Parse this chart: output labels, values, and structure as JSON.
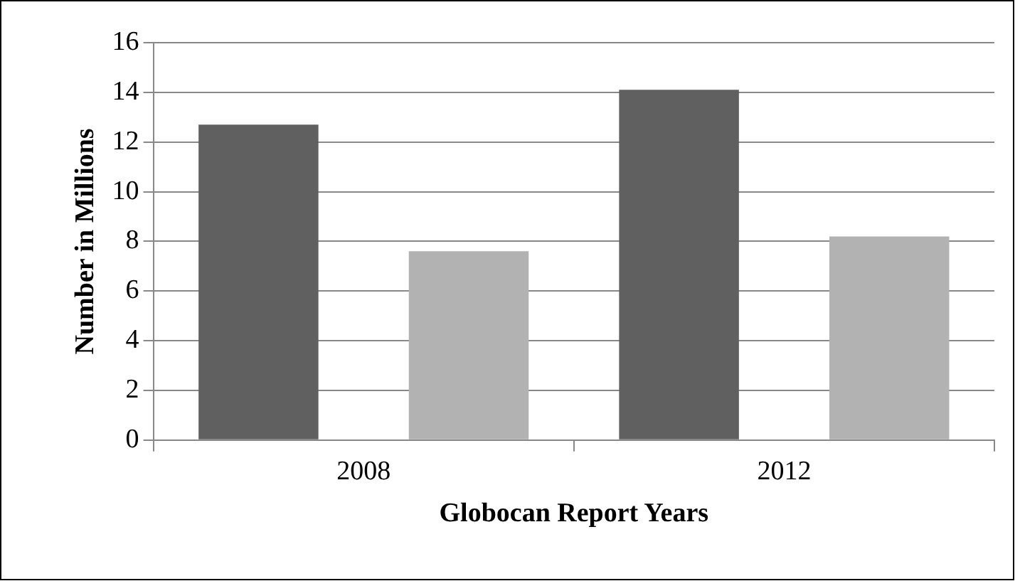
{
  "chart_data": {
    "type": "bar",
    "xlabel": "Globocan Report Years",
    "ylabel": "Number in Millions",
    "categories": [
      "2008",
      "2012"
    ],
    "series": [
      {
        "color": "#606060",
        "values": [
          12.7,
          14.1
        ]
      },
      {
        "color": "#b2b2b2",
        "values": [
          7.6,
          8.2
        ]
      }
    ],
    "ylim": [
      0,
      16
    ],
    "yticks": [
      0,
      2,
      4,
      6,
      8,
      10,
      12,
      14,
      16
    ],
    "grid": "y"
  }
}
